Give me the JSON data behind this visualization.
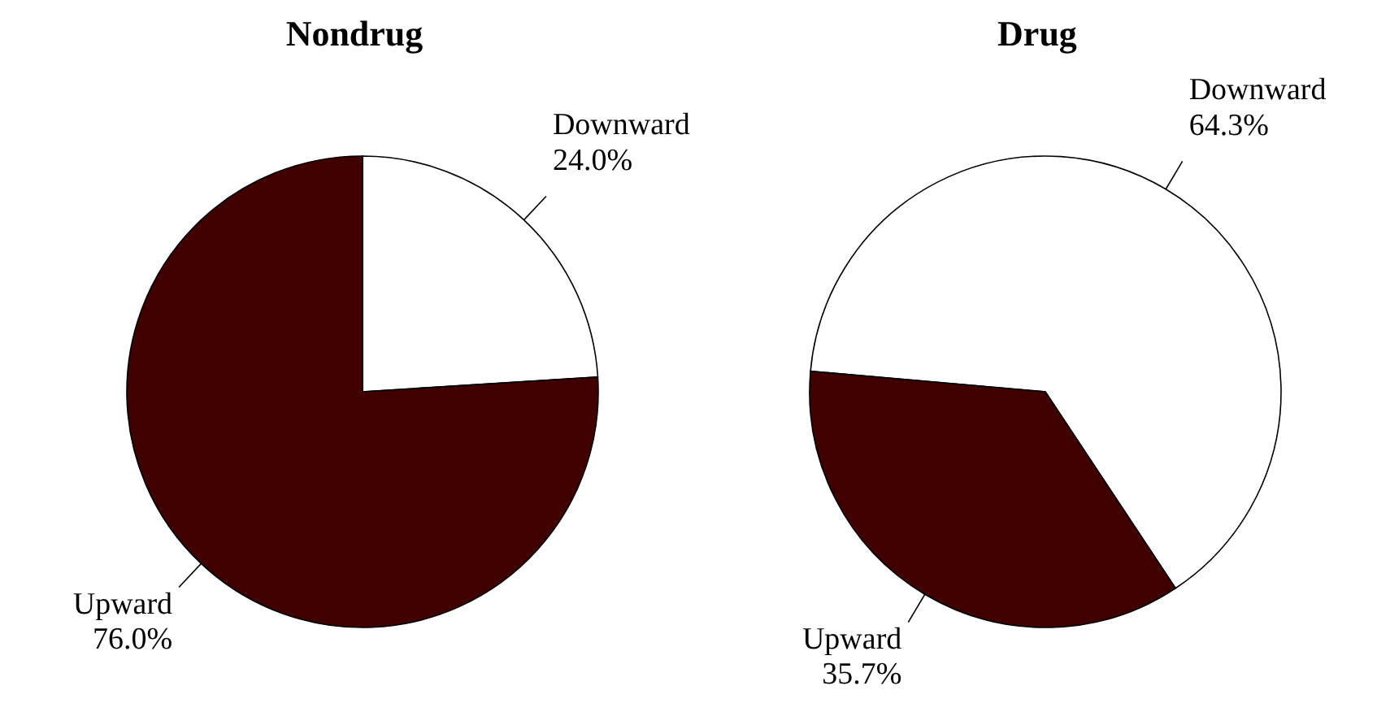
{
  "chart_data": [
    {
      "type": "pie",
      "title": "Nondrug",
      "categories": [
        "Downward",
        "Upward"
      ],
      "values": [
        24.0,
        76.0
      ],
      "value_labels": [
        "24.0%",
        "76.0%"
      ],
      "colors": [
        "#ffffff",
        "#400000"
      ]
    },
    {
      "type": "pie",
      "title": "Drug",
      "categories": [
        "Downward",
        "Upward"
      ],
      "values": [
        64.3,
        35.7
      ],
      "value_labels": [
        "64.3%",
        "35.7%"
      ],
      "colors": [
        "#ffffff",
        "#400000"
      ]
    }
  ]
}
